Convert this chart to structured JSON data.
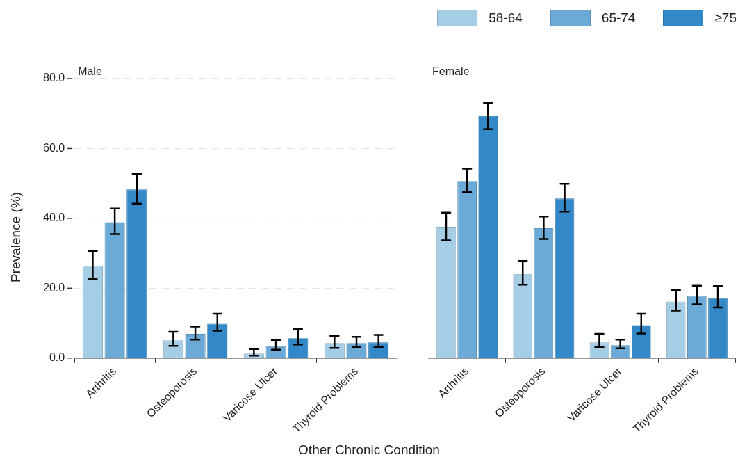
{
  "chart_data": [
    {
      "type": "bar",
      "title": "Male",
      "xlabel": "Other Chronic Condition",
      "ylabel": "Prevalence (%)",
      "categories": [
        "Arthritis",
        "Osteoporosis",
        "Varicose Ulcer",
        "Thyroid Problems"
      ],
      "series": [
        {
          "color": "#a6cde6",
          "values": [
            26.4,
            5.1,
            1.3,
            4.3
          ],
          "errors": [
            [
              22.6,
              30.6
            ],
            [
              3.5,
              7.5
            ],
            [
              0.7,
              2.6
            ],
            [
              2.9,
              6.4
            ]
          ]
        },
        {
          "color": "#6baad6",
          "values": [
            38.9,
            6.9,
            3.4,
            4.3
          ],
          "errors": [
            [
              35.5,
              42.8
            ],
            [
              5.3,
              9.0
            ],
            [
              2.4,
              5.2
            ],
            [
              3.1,
              6.1
            ]
          ]
        },
        {
          "color": "#3388c8",
          "values": [
            48.3,
            9.8,
            5.7,
            4.5
          ],
          "errors": [
            [
              44.2,
              52.7
            ],
            [
              7.8,
              12.7
            ],
            [
              3.9,
              8.3
            ],
            [
              3.2,
              6.6
            ]
          ]
        }
      ],
      "ylim": [
        0,
        80
      ],
      "yticks": [
        {
          "value": 0,
          "label": "0.0"
        },
        {
          "value": 20,
          "label": "20.0"
        },
        {
          "value": 40,
          "label": "40.0"
        },
        {
          "value": 60,
          "label": "60.0"
        },
        {
          "value": 80,
          "label": "80.0"
        }
      ],
      "grid": "y"
    },
    {
      "type": "bar",
      "title": "Female",
      "categories": [
        "Arthritis",
        "Osteoporosis",
        "Varicose Ulcer",
        "Thyroid Problems"
      ],
      "series": [
        {
          "name": "58-64",
          "color": "#a6cde6",
          "values": [
            37.4,
            24.1,
            4.5,
            16.2
          ],
          "errors": [
            [
              33.7,
              41.6
            ],
            [
              21.0,
              27.8
            ],
            [
              3.1,
              6.9
            ],
            [
              13.6,
              19.4
            ]
          ]
        },
        {
          "name": "65-74",
          "color": "#6baad6",
          "values": [
            50.7,
            37.2,
            3.7,
            17.8
          ],
          "errors": [
            [
              47.5,
              54.2
            ],
            [
              34.1,
              40.5
            ],
            [
              2.8,
              5.3
            ],
            [
              15.4,
              20.7
            ]
          ]
        },
        {
          "name": "≥75",
          "color": "#3388c8",
          "values": [
            69.3,
            45.7,
            9.4,
            17.2
          ],
          "errors": [
            [
              65.5,
              73.1
            ],
            [
              41.9,
              49.9
            ],
            [
              7.0,
              12.7
            ],
            [
              14.5,
              20.6
            ]
          ]
        }
      ],
      "ylim": [
        0,
        80
      ],
      "yticks": [
        {
          "value": 0,
          "label": null
        },
        {
          "value": 20,
          "label": null
        },
        {
          "value": 40,
          "label": null
        },
        {
          "value": 60,
          "label": null
        },
        {
          "value": 80,
          "label": null
        }
      ],
      "grid": "y",
      "tick_labels": "x",
      "legend": "top right"
    }
  ]
}
